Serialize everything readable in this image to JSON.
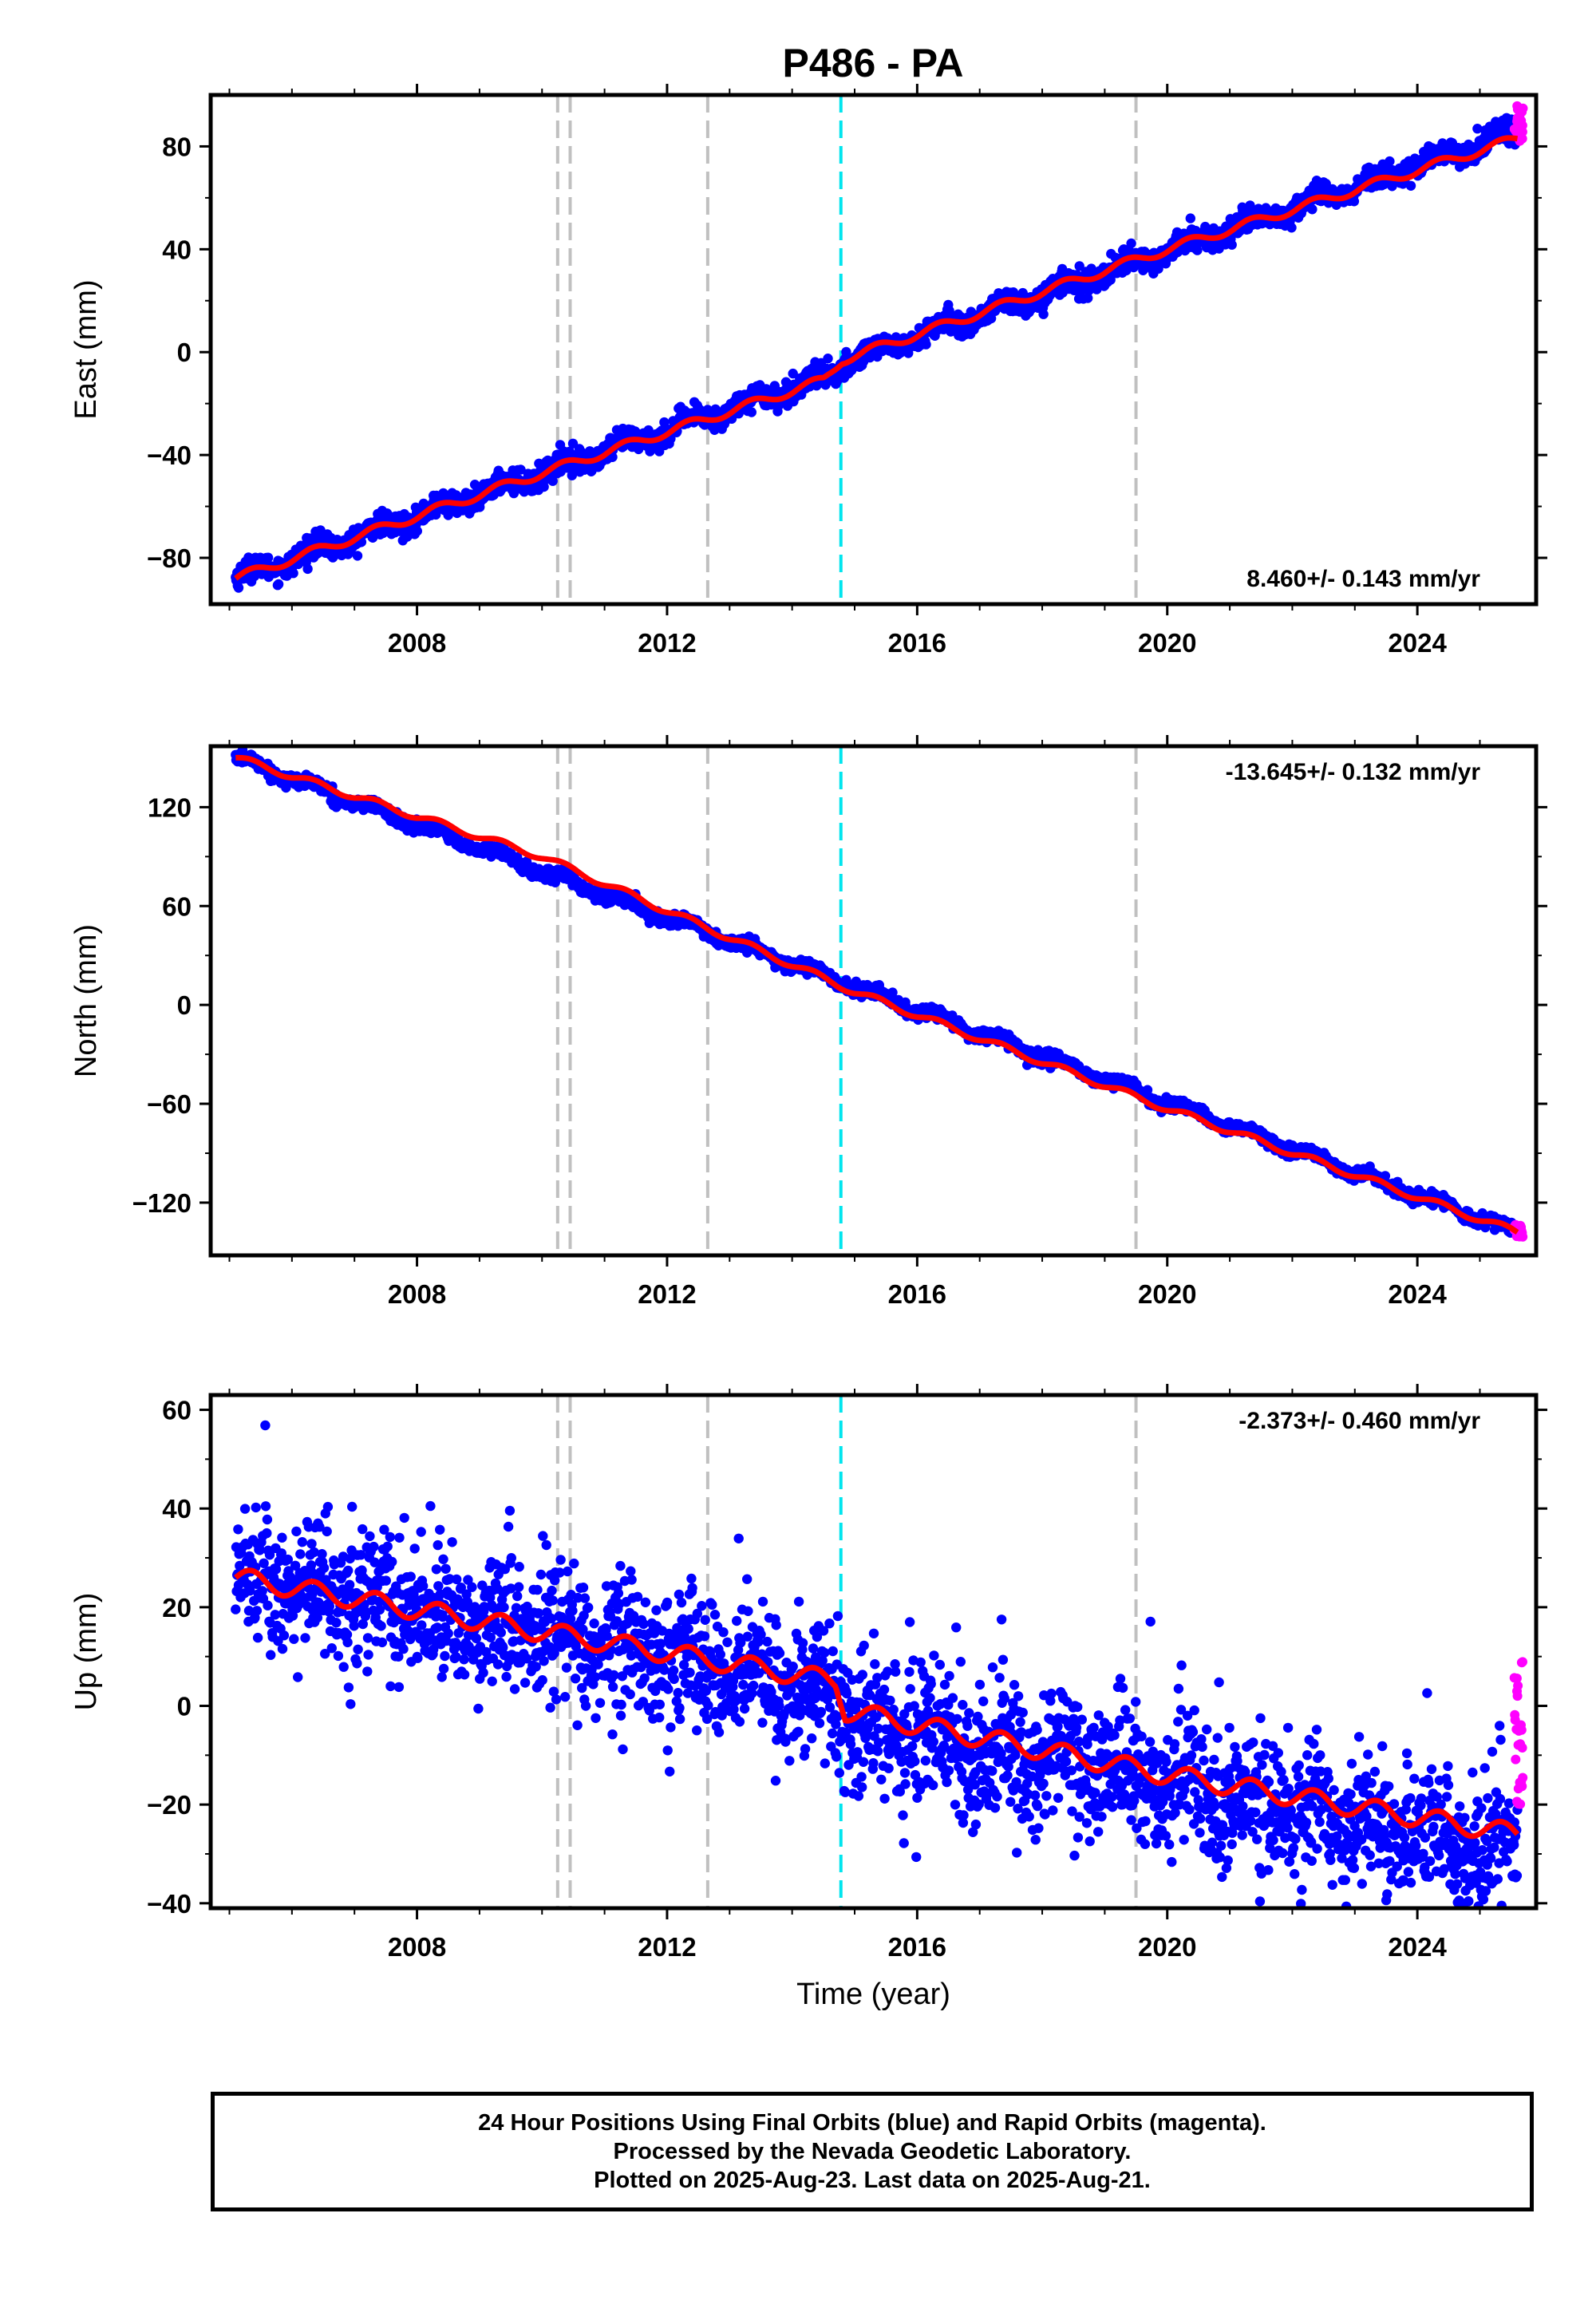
{
  "title": "P486 - PA",
  "colors": {
    "final": "#0000ff",
    "rapid": "#ff00ff",
    "model": "#ff0000",
    "event_grey": "#c0c0c0",
    "event_cyan": "#00e5ee"
  },
  "events": {
    "grey": [
      2010.25,
      2010.45,
      2012.65,
      2019.5
    ],
    "cyan": [
      2014.78
    ]
  },
  "chart_data": [
    {
      "type": "scatter",
      "name": "east",
      "ylabel": "East (mm)",
      "rate_text": "8.460+/- 0.143 mm/yr",
      "rate_pos": "bottom-right",
      "xlim": [
        2004.7,
        2025.9
      ],
      "ylim": [
        -98,
        100
      ],
      "xticks": [
        2008,
        2012,
        2016,
        2020,
        2024
      ],
      "yticks": [
        -80,
        -40,
        0,
        40,
        80
      ],
      "x_start": 2005.1,
      "x_end": 2025.6,
      "start_value": -88,
      "end_value": 83,
      "seasonal_amp": 2.2,
      "noise": 2.2,
      "offsets": [
        {
          "x": 2014.78,
          "value": 3
        }
      ],
      "model_points": [
        [
          2005.1,
          -88
        ],
        [
          2010,
          -47
        ],
        [
          2014.5,
          -11
        ],
        [
          2014.8,
          -3
        ],
        [
          2020,
          40
        ],
        [
          2025.6,
          83
        ]
      ],
      "rapid_range": [
        82,
        96
      ]
    },
    {
      "type": "scatter",
      "name": "north",
      "ylabel": "North (mm)",
      "rate_text": "-13.645+/- 0.132 mm/yr",
      "rate_pos": "top-right",
      "xlim": [
        2004.7,
        2025.9
      ],
      "ylim": [
        -152,
        157
      ],
      "xticks": [
        2008,
        2012,
        2016,
        2020,
        2024
      ],
      "yticks": [
        -120,
        -60,
        0,
        60,
        120
      ],
      "x_start": 2005.1,
      "x_end": 2025.6,
      "start_value": 150,
      "end_value": -138,
      "seasonal_amp": 2.5,
      "noise": 1.8,
      "offsets": [],
      "model_points": [
        [
          2005.1,
          150
        ],
        [
          2010,
          90
        ],
        [
          2015,
          8
        ],
        [
          2020,
          -63
        ],
        [
          2025.6,
          -138
        ]
      ],
      "rapid_range": [
        -141,
        -133
      ]
    },
    {
      "type": "scatter",
      "name": "up",
      "ylabel": "Up (mm)",
      "rate_text": "-2.373+/- 0.460 mm/yr",
      "rate_pos": "top-right",
      "xlabel": "Time (year)",
      "xlim": [
        2004.7,
        2025.9
      ],
      "ylim": [
        -41,
        63
      ],
      "xticks": [
        2008,
        2012,
        2016,
        2020,
        2024
      ],
      "yticks": [
        -40,
        -20,
        0,
        20,
        40,
        60
      ],
      "x_start": 2005.1,
      "x_end": 2025.6,
      "start_value": 27,
      "end_value": -25,
      "seasonal_amp": 2.5,
      "noise": 6.5,
      "offsets": [
        {
          "x": 2014.78,
          "value": -5
        }
      ],
      "model_points": [
        [
          2005.1,
          26
        ],
        [
          2010,
          15
        ],
        [
          2014.7,
          5
        ],
        [
          2014.85,
          -1
        ],
        [
          2020,
          -14
        ],
        [
          2025.6,
          -26
        ]
      ],
      "rapid_range": [
        -20,
        9
      ]
    }
  ],
  "footer": {
    "line1": "24 Hour Positions Using Final Orbits (blue) and Rapid Orbits (magenta).",
    "line2": "Processed by the Nevada Geodetic Laboratory.",
    "line3": "Plotted on 2025-Aug-23. Last data on 2025-Aug-21."
  }
}
